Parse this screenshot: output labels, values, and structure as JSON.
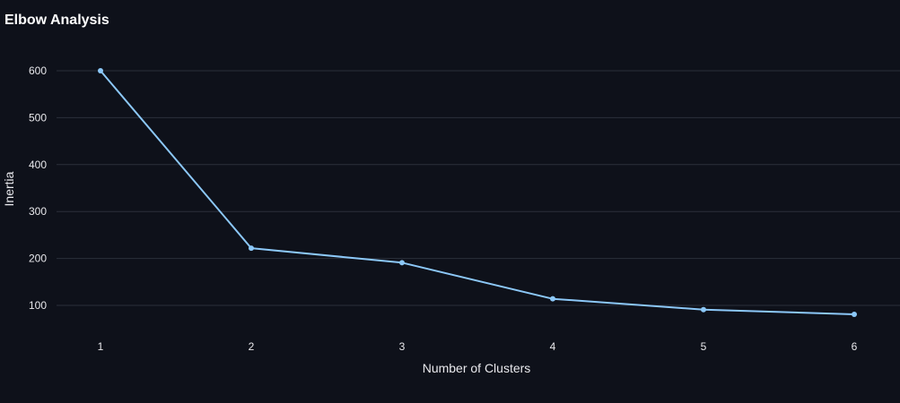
{
  "chart_data": {
    "type": "line",
    "title": "Elbow Analysis",
    "xlabel": "Number of Clusters",
    "ylabel": "Inertia",
    "x": [
      1,
      2,
      3,
      4,
      5,
      6
    ],
    "series": [
      {
        "values": [
          600,
          222,
          191,
          114,
          91,
          81
        ]
      }
    ],
    "xticks": [
      "1",
      "2",
      "3",
      "4",
      "5",
      "6"
    ],
    "yticks": [
      100,
      200,
      300,
      400,
      500,
      600
    ],
    "ylim": [
      60,
      660
    ],
    "grid": "horizontal",
    "line_color": "#8cc8f8",
    "point_color": "#8cc8f8",
    "grid_color": "#2b303b",
    "background": "#0e111a"
  }
}
